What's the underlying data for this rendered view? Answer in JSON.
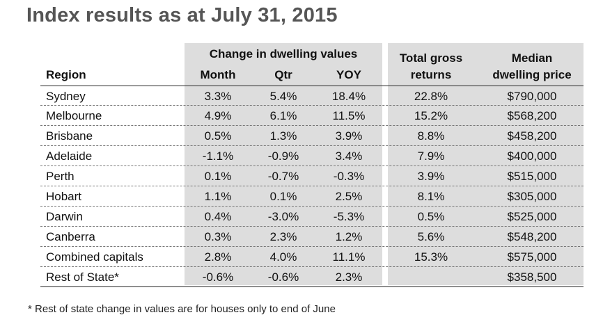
{
  "title": "Index results as at July 31, 2015",
  "header": {
    "change_group": "Change in dwelling values",
    "region": "Region",
    "month": "Month",
    "qtr": "Qtr",
    "yoy": "YOY",
    "total_gross_1": "Total gross",
    "total_gross_2": "returns",
    "median_1": "Median",
    "median_2": "dwelling price"
  },
  "rows": [
    {
      "region": "Sydney",
      "month": "3.3%",
      "qtr": "5.4%",
      "yoy": "18.4%",
      "total": "22.8%",
      "median": "$790,000"
    },
    {
      "region": "Melbourne",
      "month": "4.9%",
      "qtr": "6.1%",
      "yoy": "11.5%",
      "total": "15.2%",
      "median": "$568,200"
    },
    {
      "region": "Brisbane",
      "month": "0.5%",
      "qtr": "1.3%",
      "yoy": "3.9%",
      "total": "8.8%",
      "median": "$458,200"
    },
    {
      "region": "Adelaide",
      "month": "-1.1%",
      "qtr": "-0.9%",
      "yoy": "3.4%",
      "total": "7.9%",
      "median": "$400,000"
    },
    {
      "region": "Perth",
      "month": "0.1%",
      "qtr": "-0.7%",
      "yoy": "-0.3%",
      "total": "3.9%",
      "median": "$515,000"
    },
    {
      "region": "Hobart",
      "month": "1.1%",
      "qtr": "0.1%",
      "yoy": "2.5%",
      "total": "8.1%",
      "median": "$305,000"
    },
    {
      "region": "Darwin",
      "month": "0.4%",
      "qtr": "-3.0%",
      "yoy": "-5.3%",
      "total": "0.5%",
      "median": "$525,000"
    },
    {
      "region": "Canberra",
      "month": "0.3%",
      "qtr": "2.3%",
      "yoy": "1.2%",
      "total": "5.6%",
      "median": "$548,200"
    },
    {
      "region": "Combined capitals",
      "month": "2.8%",
      "qtr": "4.0%",
      "yoy": "11.1%",
      "total": "15.3%",
      "median": "$575,000"
    },
    {
      "region": "Rest of State*",
      "month": "-0.6%",
      "qtr": "-0.6%",
      "yoy": "2.3%",
      "total": "",
      "median": "$358,500"
    }
  ],
  "footnote": "* Rest of state change in values are for houses only to end of June"
}
